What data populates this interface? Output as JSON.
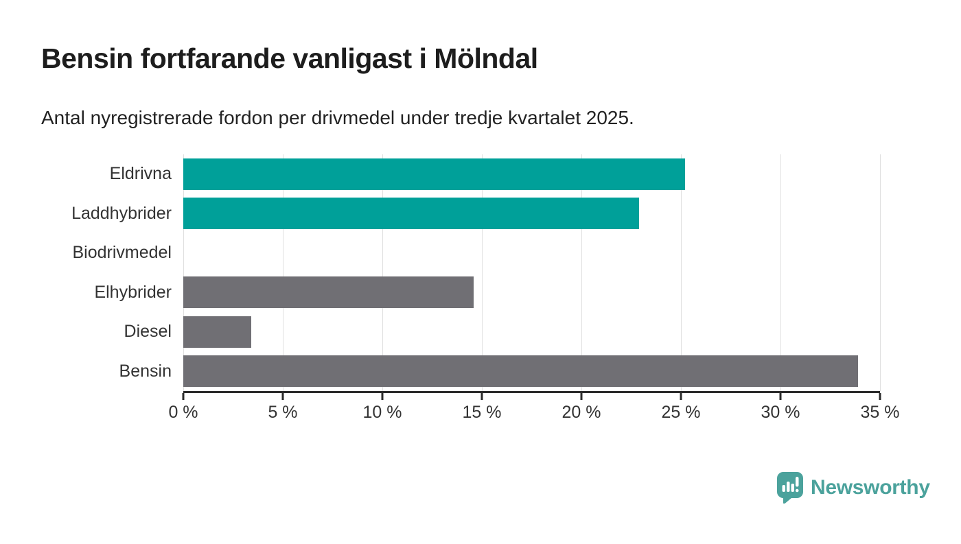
{
  "header": {
    "title": "Bensin fortfarande vanligast i Mölndal",
    "subtitle": "Antal nyregistrerade fordon per drivmedel under tredje kvartalet 2025."
  },
  "chart_data": {
    "type": "bar",
    "orientation": "horizontal",
    "title": "Bensin fortfarande vanligast i Mölndal",
    "subtitle": "Antal nyregistrerade fordon per drivmedel under tredje kvartalet 2025.",
    "categories": [
      "Eldrivna",
      "Laddhybrider",
      "Biodrivmedel",
      "Elhybrider",
      "Diesel",
      "Bensin"
    ],
    "values": [
      25.2,
      22.9,
      0,
      14.6,
      3.4,
      33.9
    ],
    "unit": "%",
    "bar_colors": [
      "#00A099",
      "#00A099",
      "#00A099",
      "#706F74",
      "#706F74",
      "#706F74"
    ],
    "xlim": [
      0,
      35
    ],
    "x_tick_values": [
      0,
      5,
      10,
      15,
      20,
      25,
      30,
      35
    ],
    "x_tick_labels": [
      "0 %",
      "5 %",
      "10 %",
      "15 %",
      "20 %",
      "25 %",
      "30 %",
      "35 %"
    ],
    "grid": true,
    "legend": false
  },
  "branding": {
    "logo_text": "Newsworthy",
    "logo_color": "#4BA29C",
    "logo_icon": "bar-chart-speech-bubble"
  },
  "colors": {
    "highlight_teal": "#00A099",
    "neutral_gray": "#706F74",
    "gridline": "#E0E0E0",
    "axis": "#2B2B2B",
    "title_text": "#1D1D1D",
    "subtitle_text": "#222222",
    "label_text": "#333333"
  }
}
